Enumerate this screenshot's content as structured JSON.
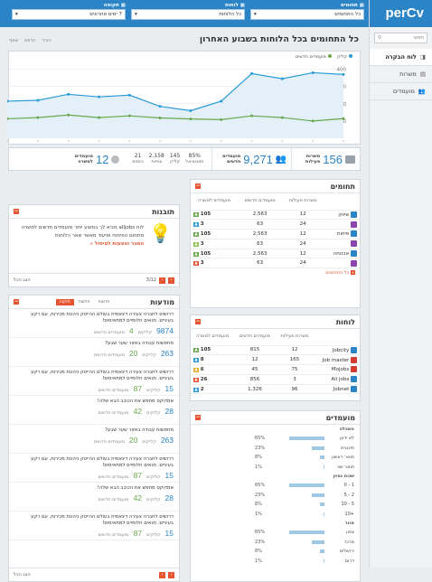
{
  "app": {
    "logo": "perCv",
    "search_placeholder": "חפש"
  },
  "nav": [
    {
      "label": "לוח הבקרה",
      "icon": "dashboard-icon",
      "active": true
    },
    {
      "label": "משרות",
      "icon": "briefcase-icon"
    },
    {
      "label": "מועמדים",
      "icon": "users-icon"
    }
  ],
  "filters": [
    {
      "label": "תחומים",
      "value": "כל התחומים"
    },
    {
      "label": "לוחות",
      "value": "כל הלוחות"
    },
    {
      "label": "תקופה",
      "value": "7 ימים אחרונים"
    }
  ],
  "page": {
    "title": "כל התחומים בכל הלוחות בשבוע האחרון",
    "actions": [
      "הורד",
      "הדפס",
      "שתף"
    ]
  },
  "chart_data": {
    "type": "line",
    "x": [
      "1",
      "2",
      "3",
      "4",
      "5",
      "6",
      "7",
      "8",
      "9",
      "10",
      "11",
      "12"
    ],
    "series": [
      {
        "name": "קליק",
        "color": "#2b9bd7",
        "values": [
          215,
          220,
          255,
          240,
          250,
          185,
          160,
          215,
          375,
          345,
          380,
          370
        ]
      },
      {
        "name": "מועמדים חדשים",
        "color": "#6aa84f",
        "values": [
          113,
          120,
          135,
          120,
          130,
          118,
          112,
          108,
          130,
          120,
          100,
          114
        ]
      }
    ],
    "ylim": [
      0,
      440
    ],
    "yticks": [
      "400",
      "300",
      "200",
      "100"
    ],
    "grid": true,
    "legend": "top-right"
  },
  "stats": {
    "jobs_value": "156",
    "jobs_label": "משרות פעילות",
    "cand_value": "9,271",
    "cand_label": "מועמדים חדשים",
    "small": [
      {
        "v": "85%",
        "l": "פוטנציאל"
      },
      {
        "v": "145",
        "l": "קליק"
      },
      {
        "v": "2,158",
        "l": "צפיות"
      },
      {
        "v": "21",
        "l": "גיוסים"
      }
    ],
    "hire_value": "12",
    "hire_label": "מועמדים למשרה"
  },
  "fields": {
    "title": "תחומים",
    "cols": [
      "משרות פעילות",
      "מועמדים חדשים",
      "מועמדים למשרה"
    ],
    "rows": [
      {
        "n": "שיווק",
        "a": "12",
        "b": "2,563",
        "c": "105",
        "bc": "#6aa84f",
        "ic": "#2b84c6"
      },
      {
        "n": "",
        "a": "24",
        "b": "63",
        "c": "3",
        "bc": "#2b9bd7",
        "ic": "#8e44ad"
      },
      {
        "n": "פיתוח",
        "a": "12",
        "b": "2,563",
        "c": "105",
        "bc": "#6aa84f",
        "ic": "#2b84c6"
      },
      {
        "n": "",
        "a": "24",
        "b": "63",
        "c": "3",
        "bc": "#8bc34a",
        "ic": "#8e44ad"
      },
      {
        "n": "אבטחה",
        "a": "12",
        "b": "2,563",
        "c": "105",
        "bc": "#6aa84f",
        "ic": "#2b84c6"
      },
      {
        "n": "",
        "a": "24",
        "b": "63",
        "c": "3",
        "bc": "#e6542f",
        "ic": "#8e44ad"
      }
    ],
    "footer": "כל התחומים"
  },
  "tips": {
    "title": "תובנות",
    "text": "לוח alljobs מביא לך במוצע יותר מועמדים חדשים למשרה מתחום הפיתוח וסיעוד מאשר שאר הלוחות",
    "link": "הסבר והצעות לטיפול »",
    "pager": "3/12",
    "all": "הצג הכל"
  },
  "boards": {
    "title": "לוחות",
    "rows": [
      {
        "n": "Jobcity",
        "a": "12",
        "b": "815",
        "c": "105",
        "bc": "#6aa84f",
        "ic": "#2b84c6"
      },
      {
        "n": "Job master",
        "a": "165",
        "b": "12",
        "c": "8",
        "bc": "#2b9bd7",
        "ic": "#d43c2c"
      },
      {
        "n": "Mojobs",
        "a": "75",
        "b": "45",
        "c": "6",
        "bc": "#e6b12f",
        "ic": "#d43c2c"
      },
      {
        "n": "All jobs",
        "a": "3",
        "b": "856",
        "c": "26",
        "bc": "#e6542f",
        "ic": "#2b84c6"
      },
      {
        "n": "Jobnet",
        "a": "96",
        "b": "1,326",
        "c": "2",
        "bc": "#2b9bd7",
        "ic": "#2b84c6"
      }
    ]
  },
  "ads": {
    "title": "מודעות",
    "tabs": [
      "חדשות",
      "חלשות",
      "חזקות"
    ],
    "all": "הצג הכל",
    "items": [
      {
        "t": "דרושים לחברה צעירה דינאמית בעולם ההייטק ניהנות מכירות, עם רקע בעיניים. תנאים חלומיים למתאימים!",
        "n1": "9874",
        "l1": "קליקים",
        "n2": "4",
        "l2": "מועמדים חדשים"
      },
      {
        "t": "מחפשות עבודה באזור שער שבע?",
        "n1": "263",
        "l1": "קליקים",
        "n2": "20",
        "l2": "מועמדים חדשים"
      },
      {
        "t": "דרושים לחברה צעירה דינאמית בעולם ההייטק ניהנות מכירות, עם רקע בעיניים. תנאים חלומיים למתאימים!",
        "n1": "15",
        "l1": "קליקים",
        "n2": "87",
        "l2": "מועמדים חדשים"
      },
      {
        "t": "אמדוקס מחפש את הכוכב הבא שלה!",
        "n1": "28",
        "l1": "קליקים",
        "n2": "42",
        "l2": "מועמדים חדשים"
      },
      {
        "t": "מחפשות עבודה באזור שער שבע?",
        "n1": "263",
        "l1": "קליקים",
        "n2": "20",
        "l2": "מועמדים חדשים"
      },
      {
        "t": "דרושים לחברה צעירה דינאמית בעולם ההייטק ניהנות מכירות, עם רקע בעיניים. תנאים חלומיים למתאימים!",
        "n1": "15",
        "l1": "קליקים",
        "n2": "87",
        "l2": "מועמדים חדשים"
      },
      {
        "t": "אמדוקס מחפש את הכוכב הבא שלה!",
        "n1": "28",
        "l1": "קליקים",
        "n2": "42",
        "l2": "מועמדים חדשים"
      },
      {
        "t": "דרושים לחברה צעירה דינאמית בעולם ההייטק ניהנות מכירות, עם רקע בעיניים. תנאים חלומיים למתאימים!",
        "n1": "15",
        "l1": "קליקים",
        "n2": "87",
        "l2": "מועמדים חדשים"
      }
    ]
  },
  "candidates": {
    "title": "מועמדים",
    "groups": [
      {
        "name": "השכלה",
        "rows": [
          {
            "n": "לא ידוע",
            "p": "65%",
            "v": 0.65
          },
          {
            "n": "תיכונית",
            "p": "23%",
            "v": 0.23
          },
          {
            "n": "תואר ראשון",
            "p": "8%",
            "v": 0.08
          },
          {
            "n": "תואר שני",
            "p": "1%",
            "v": 0.01
          }
        ]
      },
      {
        "name": "שנות נסיון",
        "rows": [
          {
            "n": "1 - 0",
            "p": "65%",
            "v": 0.65
          },
          {
            "n": "2 - 5",
            "p": "23%",
            "v": 0.23
          },
          {
            "n": "5 - 10",
            "p": "8%",
            "v": 0.08
          },
          {
            "n": "+10",
            "p": "1%",
            "v": 0.01
          }
        ]
      },
      {
        "name": "אזור",
        "rows": [
          {
            "n": "צפון",
            "p": "65%",
            "v": 0.65
          },
          {
            "n": "מרכז",
            "p": "23%",
            "v": 0.23
          },
          {
            "n": "ירושלים",
            "p": "8%",
            "v": 0.08
          },
          {
            "n": "דרום",
            "p": "1%",
            "v": 0.01
          }
        ]
      }
    ]
  }
}
